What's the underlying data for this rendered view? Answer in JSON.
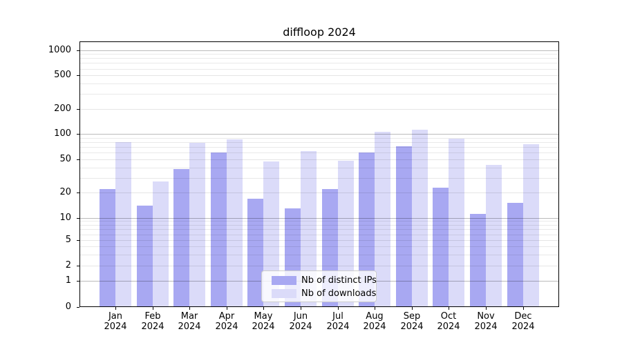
{
  "chart_data": {
    "type": "bar",
    "title": "diffloop 2024",
    "categories": [
      "Jan",
      "Feb",
      "Mar",
      "Apr",
      "May",
      "Jun",
      "Jul",
      "Aug",
      "Sep",
      "Oct",
      "Nov",
      "Dec"
    ],
    "year_label": "2024",
    "series": [
      {
        "name": "Nb of distinct IPs",
        "color": "#a8a8f2",
        "values": [
          22,
          14,
          38,
          60,
          17,
          13,
          22,
          60,
          72,
          23,
          11,
          15
        ]
      },
      {
        "name": "Nb of downloads",
        "color": "#dbdbf9",
        "values": [
          80,
          27,
          78,
          87,
          47,
          62,
          48,
          107,
          112,
          88,
          43,
          75
        ]
      }
    ],
    "y_axis": {
      "scale": "symlog",
      "ticks": [
        0,
        1,
        2,
        5,
        10,
        20,
        50,
        100,
        200,
        500,
        1000
      ],
      "range": [
        0,
        1000
      ]
    },
    "x_axis": {
      "tick_label_lines": 2
    },
    "legend": {
      "position": "lower center"
    },
    "grid": true,
    "background": "#ffffff"
  }
}
